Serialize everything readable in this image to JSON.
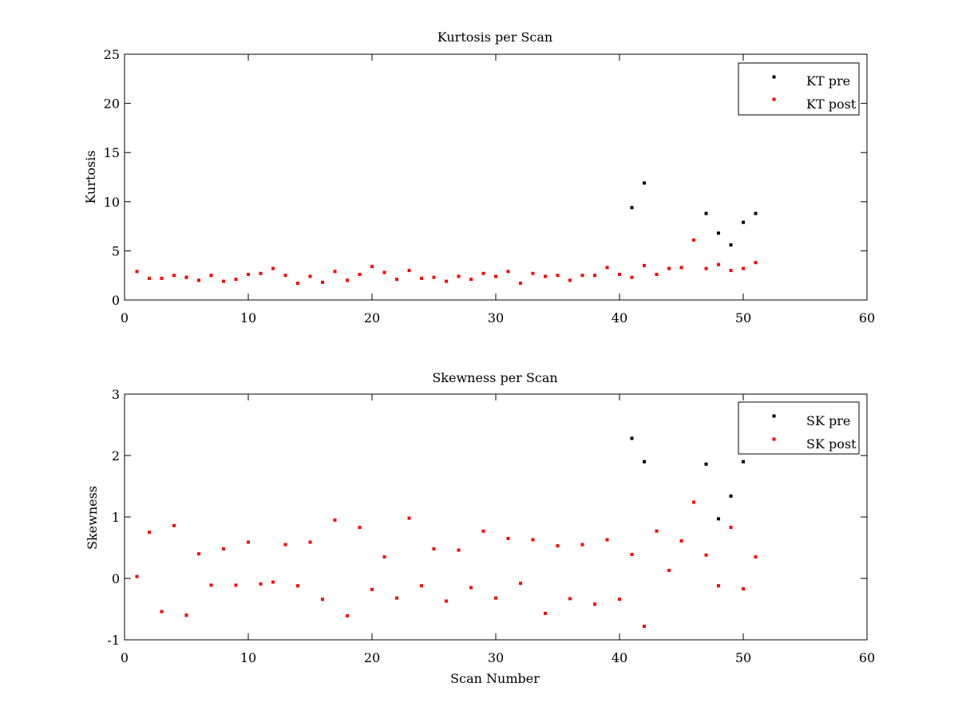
{
  "chart_data": [
    {
      "type": "scatter",
      "title": "Kurtosis per Scan",
      "xlabel": "",
      "ylabel": "Kurtosis",
      "xlim": [
        0,
        60
      ],
      "ylim": [
        0,
        25
      ],
      "xticks": [
        0,
        10,
        20,
        30,
        40,
        50,
        60
      ],
      "yticks": [
        0,
        5,
        10,
        15,
        20,
        25
      ],
      "grid": false,
      "legend_position": "top-right",
      "series": [
        {
          "name": "KT pre",
          "color": "#000000",
          "points": [
            [
              5,
              2.3
            ],
            [
              41,
              9.4
            ],
            [
              42,
              11.9
            ],
            [
              47,
              8.8
            ],
            [
              48,
              6.8
            ],
            [
              49,
              5.6
            ],
            [
              50,
              7.9
            ],
            [
              51,
              8.8
            ]
          ]
        },
        {
          "name": "KT post",
          "color": "#ff0000",
          "points": [
            [
              1,
              2.9
            ],
            [
              2,
              2.2
            ],
            [
              3,
              2.2
            ],
            [
              4,
              2.5
            ],
            [
              5,
              2.3
            ],
            [
              6,
              2.0
            ],
            [
              7,
              2.5
            ],
            [
              8,
              1.9
            ],
            [
              9,
              2.1
            ],
            [
              10,
              2.6
            ],
            [
              11,
              2.7
            ],
            [
              12,
              3.2
            ],
            [
              13,
              2.5
            ],
            [
              14,
              1.7
            ],
            [
              15,
              2.4
            ],
            [
              16,
              1.8
            ],
            [
              17,
              2.9
            ],
            [
              18,
              2.0
            ],
            [
              19,
              2.6
            ],
            [
              20,
              3.4
            ],
            [
              21,
              2.8
            ],
            [
              22,
              2.1
            ],
            [
              23,
              3.0
            ],
            [
              24,
              2.2
            ],
            [
              25,
              2.3
            ],
            [
              26,
              1.9
            ],
            [
              27,
              2.4
            ],
            [
              28,
              2.1
            ],
            [
              29,
              2.7
            ],
            [
              30,
              2.4
            ],
            [
              31,
              2.9
            ],
            [
              32,
              1.7
            ],
            [
              33,
              2.7
            ],
            [
              34,
              2.4
            ],
            [
              35,
              2.5
            ],
            [
              36,
              2.0
            ],
            [
              37,
              2.5
            ],
            [
              38,
              2.5
            ],
            [
              39,
              3.3
            ],
            [
              40,
              2.6
            ],
            [
              41,
              2.3
            ],
            [
              42,
              3.5
            ],
            [
              43,
              2.6
            ],
            [
              44,
              3.2
            ],
            [
              45,
              3.3
            ],
            [
              46,
              6.1
            ],
            [
              47,
              3.2
            ],
            [
              48,
              3.6
            ],
            [
              49,
              3.0
            ],
            [
              50,
              3.2
            ],
            [
              51,
              3.8
            ]
          ]
        }
      ]
    },
    {
      "type": "scatter",
      "title": "Skewness per Scan",
      "xlabel": "Scan Number",
      "ylabel": "Skewness",
      "xlim": [
        0,
        60
      ],
      "ylim": [
        -1,
        3
      ],
      "xticks": [
        0,
        10,
        20,
        30,
        40,
        50,
        60
      ],
      "yticks": [
        -1,
        0,
        1,
        2,
        3
      ],
      "grid": false,
      "legend_position": "top-right",
      "series": [
        {
          "name": "SK pre",
          "color": "#000000",
          "points": [
            [
              5,
              -0.6
            ],
            [
              41,
              2.28
            ],
            [
              42,
              1.9
            ],
            [
              47,
              1.86
            ],
            [
              48,
              0.97
            ],
            [
              49,
              1.34
            ],
            [
              50,
              1.9
            ]
          ]
        },
        {
          "name": "SK post",
          "color": "#ff0000",
          "points": [
            [
              1,
              0.03
            ],
            [
              2,
              0.75
            ],
            [
              3,
              -0.54
            ],
            [
              4,
              0.86
            ],
            [
              5,
              -0.6
            ],
            [
              6,
              0.4
            ],
            [
              7,
              -0.11
            ],
            [
              8,
              0.48
            ],
            [
              9,
              -0.11
            ],
            [
              10,
              0.59
            ],
            [
              11,
              -0.09
            ],
            [
              12,
              -0.06
            ],
            [
              13,
              0.55
            ],
            [
              14,
              -0.12
            ],
            [
              15,
              0.59
            ],
            [
              16,
              -0.34
            ],
            [
              17,
              0.95
            ],
            [
              18,
              -0.61
            ],
            [
              19,
              0.83
            ],
            [
              20,
              -0.18
            ],
            [
              21,
              0.35
            ],
            [
              22,
              -0.32
            ],
            [
              23,
              0.98
            ],
            [
              24,
              -0.12
            ],
            [
              25,
              0.48
            ],
            [
              26,
              -0.37
            ],
            [
              27,
              0.46
            ],
            [
              28,
              -0.15
            ],
            [
              29,
              0.77
            ],
            [
              30,
              -0.32
            ],
            [
              31,
              0.65
            ],
            [
              32,
              -0.08
            ],
            [
              33,
              0.63
            ],
            [
              34,
              -0.57
            ],
            [
              35,
              0.53
            ],
            [
              36,
              -0.33
            ],
            [
              37,
              0.55
            ],
            [
              38,
              -0.42
            ],
            [
              39,
              0.63
            ],
            [
              40,
              -0.34
            ],
            [
              41,
              0.39
            ],
            [
              42,
              -0.78
            ],
            [
              43,
              0.77
            ],
            [
              44,
              0.13
            ],
            [
              45,
              0.61
            ],
            [
              46,
              1.24
            ],
            [
              47,
              0.38
            ],
            [
              48,
              -0.12
            ],
            [
              49,
              0.83
            ],
            [
              50,
              -0.17
            ],
            [
              51,
              0.35
            ]
          ]
        }
      ]
    }
  ]
}
